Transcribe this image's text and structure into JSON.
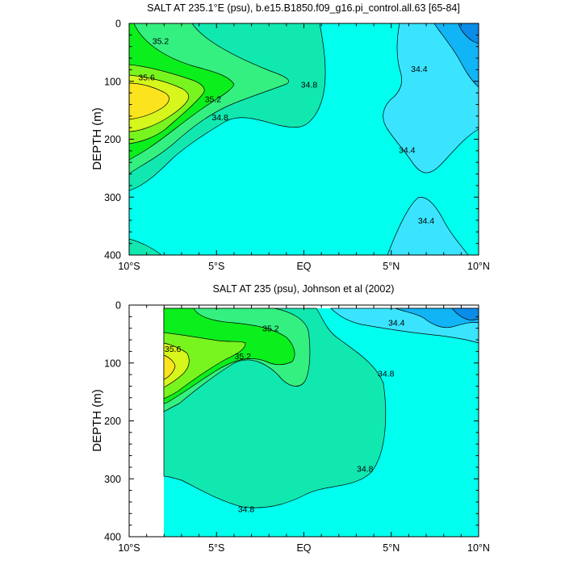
{
  "chart_data": [
    {
      "type": "contour",
      "title": "SALT AT 235.1°E (psu), b.e15.B1850.f09_g16.pi_control.all.63 [65-84]",
      "ylabel": "DEPTH (m)",
      "xlim": [
        -10,
        10
      ],
      "ylim": [
        0,
        400
      ],
      "y_inverted": true,
      "x_ticks": [
        -10,
        -5,
        0,
        5,
        10
      ],
      "x_tick_labels": [
        "10°S",
        "5°S",
        "EQ",
        "5°N",
        "10°N"
      ],
      "y_ticks": [
        0,
        100,
        200,
        300,
        400
      ],
      "y_tick_labels": [
        "0",
        "100",
        "200",
        "300",
        "400"
      ],
      "contour_labels": [
        {
          "text": "35.2",
          "x": -8.2,
          "y": 30
        },
        {
          "text": "35.6",
          "x": -9.0,
          "y": 93
        },
        {
          "text": "35.2",
          "x": -5.2,
          "y": 130
        },
        {
          "text": "34.8",
          "x": -4.8,
          "y": 162
        },
        {
          "text": "34.8",
          "x": 0.3,
          "y": 105
        },
        {
          "text": "34.4",
          "x": 6.6,
          "y": 78
        },
        {
          "text": "34.4",
          "x": 5.9,
          "y": 218
        },
        {
          "text": "34.4",
          "x": 7.0,
          "y": 340
        }
      ]
    },
    {
      "type": "contour",
      "title": "SALT AT 235 (psu), Johnson et al (2002)",
      "ylabel": "DEPTH (m)",
      "xlim": [
        -10,
        10
      ],
      "ylim": [
        0,
        400
      ],
      "y_inverted": true,
      "data_x_range": [
        -8,
        10
      ],
      "x_ticks": [
        -10,
        -5,
        0,
        5,
        10
      ],
      "x_tick_labels": [
        "10°S",
        "5°S",
        "EQ",
        "5°N",
        "10°N"
      ],
      "y_ticks": [
        0,
        100,
        200,
        300,
        400
      ],
      "y_tick_labels": [
        "0",
        "100",
        "200",
        "300",
        "400"
      ],
      "contour_labels": [
        {
          "text": "35.2",
          "x": -1.9,
          "y": 40
        },
        {
          "text": "35.6",
          "x": -7.5,
          "y": 75
        },
        {
          "text": "35.2",
          "x": -3.5,
          "y": 88
        },
        {
          "text": "34.8",
          "x": 4.7,
          "y": 118
        },
        {
          "text": "34.8",
          "x": 3.5,
          "y": 282
        },
        {
          "text": "34.8",
          "x": -3.3,
          "y": 352
        },
        {
          "text": "34.4",
          "x": 5.3,
          "y": 30
        }
      ]
    }
  ],
  "colors": {
    "band_343": "#0a8ce8",
    "band_344": "#11b4f4",
    "band_345": "#3ae4ff",
    "band_346": "#00ffee",
    "band_348": "#11e8b0",
    "band_350": "#34f080",
    "band_352": "#0bef1c",
    "band_354": "#78f41e",
    "band_356": "#d6f61c",
    "band_358": "#fbe41d"
  }
}
